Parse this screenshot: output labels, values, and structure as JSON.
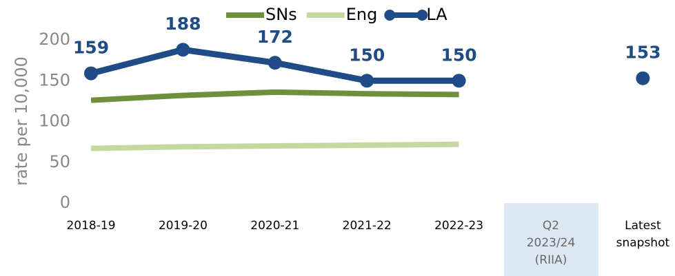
{
  "chart_data": {
    "type": "line",
    "categories": [
      "2018-19",
      "2019-20",
      "2020-21",
      "2021-22",
      "2022-23",
      "Q2 2023/24 (RIIA)",
      "Latest snapshot"
    ],
    "series": [
      {
        "name": "SNs",
        "color": "#6e8f3c",
        "values": [
          126,
          132,
          136,
          134,
          133,
          null,
          null
        ]
      },
      {
        "name": "Eng",
        "color": "#c4d9a0",
        "values": [
          67,
          69,
          70,
          71,
          72,
          null,
          null
        ]
      },
      {
        "name": "LA",
        "color": "#1f4b86",
        "values": [
          159,
          188,
          172,
          150,
          150,
          null,
          153
        ],
        "markers": true,
        "data_labels": true
      }
    ],
    "ylabel": "rate per 10,000",
    "ylim": [
      0,
      200
    ],
    "yticks": [
      0,
      50,
      100,
      150,
      200
    ],
    "grid": false,
    "legend": "top"
  }
}
